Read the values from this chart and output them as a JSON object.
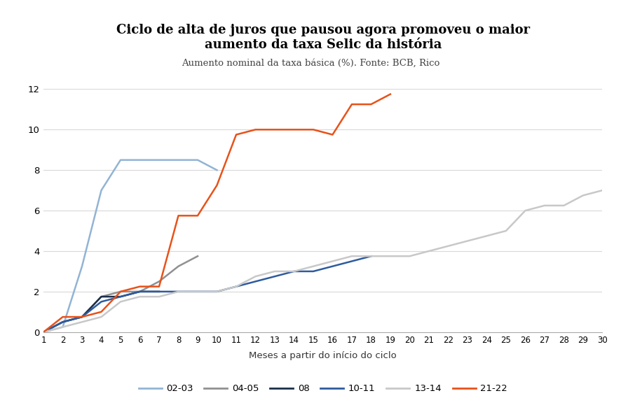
{
  "title": "Ciclo de alta de juros que pausou agora promoveu o maior\naumento da taxa Selic da história",
  "subtitle": "Aumento nominal da taxa básica (%). Fonte: BCB, Rico",
  "xlabel": "Meses a partir do início do ciclo",
  "xlim": [
    1,
    30
  ],
  "ylim": [
    0,
    12
  ],
  "yticks": [
    0,
    2,
    4,
    6,
    8,
    10,
    12
  ],
  "xticks": [
    1,
    2,
    3,
    4,
    5,
    6,
    7,
    8,
    9,
    10,
    11,
    12,
    13,
    14,
    15,
    16,
    17,
    18,
    19,
    20,
    21,
    22,
    23,
    24,
    25,
    26,
    27,
    28,
    29,
    30
  ],
  "background_color": "#ffffff",
  "series": {
    "02-03": {
      "color": "#92b4d4",
      "x": [
        1,
        2,
        3,
        4,
        5,
        6,
        7,
        8,
        9,
        10
      ],
      "y": [
        0.0,
        0.25,
        3.25,
        7.0,
        8.5,
        8.5,
        8.5,
        8.5,
        8.5,
        8.0
      ]
    },
    "04-05": {
      "color": "#909090",
      "x": [
        1,
        2,
        3,
        4,
        5,
        6,
        7,
        8,
        9
      ],
      "y": [
        0.0,
        0.5,
        0.75,
        1.75,
        2.0,
        2.0,
        2.5,
        3.25,
        3.75
      ]
    },
    "08": {
      "color": "#1a2f4a",
      "x": [
        1,
        2,
        3,
        4,
        5,
        6,
        7
      ],
      "y": [
        0.0,
        0.5,
        0.75,
        1.75,
        1.75,
        2.0,
        2.0
      ]
    },
    "10-11": {
      "color": "#2e5b9e",
      "x": [
        1,
        2,
        3,
        4,
        5,
        6,
        7,
        8,
        9,
        10,
        11,
        12,
        13,
        14,
        15,
        16,
        17,
        18
      ],
      "y": [
        0.0,
        0.5,
        0.75,
        1.5,
        1.75,
        2.0,
        2.0,
        2.0,
        2.0,
        2.0,
        2.25,
        2.5,
        2.75,
        3.0,
        3.0,
        3.25,
        3.5,
        3.75
      ]
    },
    "13-14": {
      "color": "#c8c8c8",
      "x": [
        1,
        2,
        3,
        4,
        5,
        6,
        7,
        8,
        9,
        10,
        11,
        12,
        13,
        14,
        15,
        16,
        17,
        18,
        19,
        20,
        21,
        22,
        23,
        24,
        25,
        26,
        27,
        28,
        29,
        30
      ],
      "y": [
        0.0,
        0.25,
        0.5,
        0.75,
        1.5,
        1.75,
        1.75,
        2.0,
        2.0,
        2.0,
        2.25,
        2.75,
        3.0,
        3.0,
        3.25,
        3.5,
        3.75,
        3.75,
        3.75,
        3.75,
        4.0,
        4.25,
        4.5,
        4.75,
        5.0,
        6.0,
        6.25,
        6.25,
        6.75,
        7.0
      ]
    },
    "21-22": {
      "color": "#e8521a",
      "x": [
        1,
        2,
        3,
        4,
        5,
        6,
        7,
        8,
        9,
        10,
        11,
        12,
        13,
        14,
        15,
        16,
        17,
        18,
        19
      ],
      "y": [
        0.0,
        0.75,
        0.75,
        1.0,
        2.0,
        2.25,
        2.25,
        5.75,
        5.75,
        7.25,
        9.75,
        10.0,
        10.0,
        10.0,
        10.0,
        9.75,
        11.25,
        11.25,
        11.75
      ]
    }
  },
  "legend": [
    {
      "label": "02-03",
      "color": "#92b4d4"
    },
    {
      "label": "04-05",
      "color": "#909090"
    },
    {
      "label": "08",
      "color": "#1a2f4a"
    },
    {
      "label": "10-11",
      "color": "#2e5b9e"
    },
    {
      "label": "13-14",
      "color": "#c8c8c8"
    },
    {
      "label": "21-22",
      "color": "#e8521a"
    }
  ]
}
